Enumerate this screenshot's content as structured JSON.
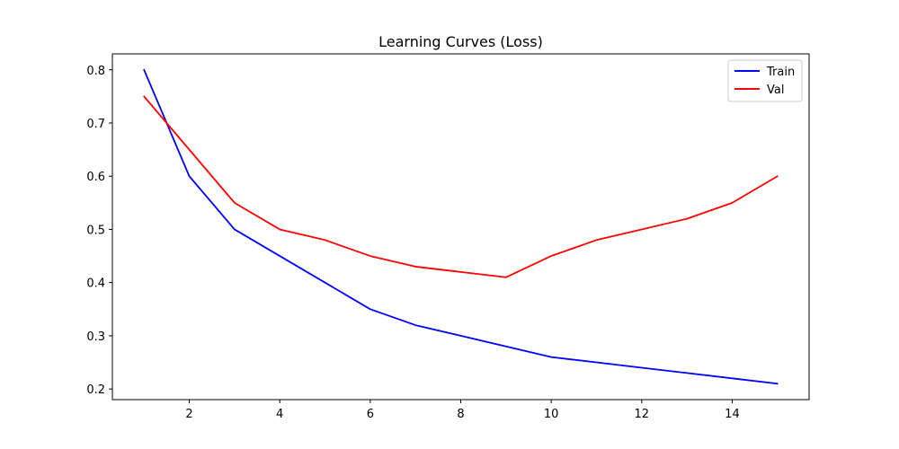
{
  "chart_data": {
    "type": "line",
    "title": "Learning Curves (Loss)",
    "xlabel": "",
    "ylabel": "",
    "x": [
      1,
      2,
      3,
      4,
      5,
      6,
      7,
      8,
      9,
      10,
      11,
      12,
      13,
      14,
      15
    ],
    "series": [
      {
        "name": "Train",
        "color": "#0000ff",
        "values": [
          0.8,
          0.6,
          0.5,
          0.45,
          0.4,
          0.35,
          0.32,
          0.3,
          0.28,
          0.26,
          0.25,
          0.24,
          0.23,
          0.22,
          0.21
        ]
      },
      {
        "name": "Val",
        "color": "#ff0000",
        "values": [
          0.75,
          0.65,
          0.55,
          0.5,
          0.48,
          0.45,
          0.43,
          0.42,
          0.41,
          0.45,
          0.48,
          0.5,
          0.52,
          0.55,
          0.6
        ]
      }
    ],
    "xlim": [
      0.3,
      15.7
    ],
    "ylim": [
      0.18,
      0.83
    ],
    "xticks": [
      2,
      4,
      6,
      8,
      10,
      12,
      14
    ],
    "yticks": [
      0.2,
      0.3,
      0.4,
      0.5,
      0.6,
      0.7,
      0.8
    ],
    "xtick_labels": [
      "2",
      "4",
      "6",
      "8",
      "10",
      "12",
      "14"
    ],
    "ytick_labels": [
      "0.2",
      "0.3",
      "0.4",
      "0.5",
      "0.6",
      "0.7",
      "0.8"
    ],
    "grid": false,
    "legend_position": "top-right"
  }
}
